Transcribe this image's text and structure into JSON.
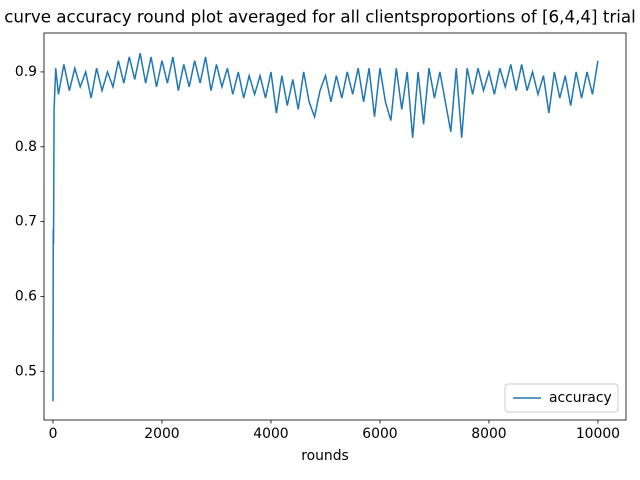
{
  "chart_data": {
    "type": "line",
    "title": "curve accuracy round plot averaged for all clientsproportions of [6,4,4] trial",
    "x_label": "rounds",
    "x": [
      0,
      5,
      10,
      20,
      50,
      100,
      200,
      300,
      400,
      500,
      600,
      700,
      800,
      900,
      1000,
      1100,
      1200,
      1300,
      1400,
      1500,
      1600,
      1700,
      1800,
      1900,
      2000,
      2100,
      2200,
      2300,
      2400,
      2500,
      2600,
      2700,
      2800,
      2900,
      3000,
      3100,
      3200,
      3300,
      3400,
      3500,
      3600,
      3700,
      3800,
      3900,
      4000,
      4100,
      4200,
      4300,
      4400,
      4500,
      4600,
      4700,
      4800,
      4900,
      5000,
      5100,
      5200,
      5300,
      5400,
      5500,
      5600,
      5700,
      5800,
      5900,
      6000,
      6100,
      6200,
      6300,
      6400,
      6500,
      6600,
      6700,
      6800,
      6900,
      7000,
      7100,
      7200,
      7300,
      7400,
      7500,
      7600,
      7700,
      7800,
      7900,
      8000,
      8100,
      8200,
      8300,
      8400,
      8500,
      8600,
      8700,
      8800,
      8900,
      9000,
      9100,
      9200,
      9300,
      9400,
      9500,
      9600,
      9700,
      9800,
      9900,
      10000
    ],
    "series": [
      {
        "name": "accuracy",
        "color": "#1f77b4",
        "values": [
          0.46,
          0.69,
          0.67,
          0.85,
          0.905,
          0.87,
          0.91,
          0.875,
          0.905,
          0.88,
          0.9,
          0.865,
          0.905,
          0.875,
          0.9,
          0.88,
          0.915,
          0.885,
          0.92,
          0.89,
          0.925,
          0.885,
          0.92,
          0.88,
          0.915,
          0.885,
          0.92,
          0.875,
          0.91,
          0.88,
          0.915,
          0.885,
          0.92,
          0.875,
          0.91,
          0.88,
          0.905,
          0.87,
          0.9,
          0.865,
          0.895,
          0.87,
          0.895,
          0.865,
          0.9,
          0.845,
          0.895,
          0.855,
          0.89,
          0.85,
          0.9,
          0.86,
          0.84,
          0.875,
          0.895,
          0.86,
          0.895,
          0.865,
          0.9,
          0.87,
          0.905,
          0.86,
          0.905,
          0.84,
          0.905,
          0.86,
          0.835,
          0.905,
          0.85,
          0.9,
          0.812,
          0.9,
          0.83,
          0.905,
          0.865,
          0.9,
          0.86,
          0.82,
          0.905,
          0.812,
          0.905,
          0.87,
          0.905,
          0.875,
          0.9,
          0.87,
          0.905,
          0.88,
          0.91,
          0.875,
          0.91,
          0.875,
          0.9,
          0.87,
          0.895,
          0.845,
          0.9,
          0.865,
          0.895,
          0.855,
          0.9,
          0.865,
          0.9,
          0.87,
          0.915
        ]
      }
    ],
    "xlim": [
      -165,
      10515
    ],
    "ylim": [
      0.435,
      0.952
    ],
    "xticks": [
      0,
      2000,
      4000,
      6000,
      8000,
      10000
    ],
    "yticks": [
      0.5,
      0.6,
      0.7,
      0.8,
      0.9
    ],
    "legend": "lower right"
  }
}
